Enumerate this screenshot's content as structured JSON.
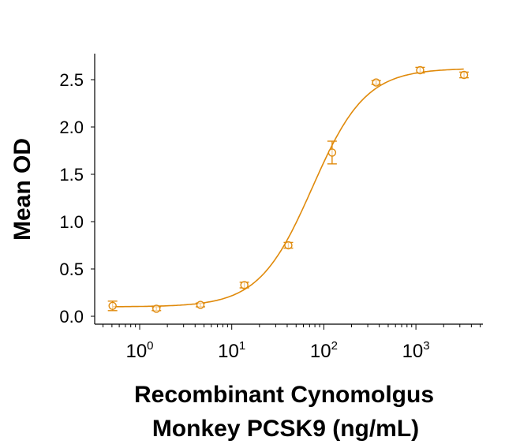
{
  "chart_data": {
    "type": "scatter",
    "title": "",
    "xlabel_lines": [
      "Recombinant Cynomolgus",
      "Monkey PCSK9 (ng/mL)"
    ],
    "ylabel": "Mean OD",
    "xscale": "log",
    "xlim": [
      0.3,
      5000
    ],
    "ylim": [
      0,
      2.8
    ],
    "yticks": [
      0.0,
      0.5,
      1.0,
      1.5,
      2.0,
      2.5
    ],
    "ytick_labels": [
      "0.0",
      "0.5",
      "1.0",
      "1.5",
      "2.0",
      "2.5"
    ],
    "xticks": [
      1,
      10,
      100,
      1000
    ],
    "xtick_labels": [
      {
        "base": "10",
        "exp": "0"
      },
      {
        "base": "10",
        "exp": "1"
      },
      {
        "base": "10",
        "exp": "2"
      },
      {
        "base": "10",
        "exp": "3"
      }
    ],
    "grid": false,
    "color": "#E08A0B",
    "series": [
      {
        "name": "Mean OD",
        "x": [
          0.508,
          1.52,
          4.57,
          13.7,
          41.2,
          123,
          370,
          1111,
          3333
        ],
        "y": [
          0.11,
          0.08,
          0.12,
          0.33,
          0.75,
          1.73,
          2.47,
          2.6,
          2.55
        ],
        "err": [
          0.05,
          0.02,
          0.02,
          0.03,
          0.03,
          0.12,
          0.02,
          0.03,
          0.03
        ]
      }
    ],
    "fit": {
      "type": "4PL",
      "bottom": 0.1,
      "top": 2.62,
      "ec50": 75,
      "hill": 1.5
    }
  }
}
